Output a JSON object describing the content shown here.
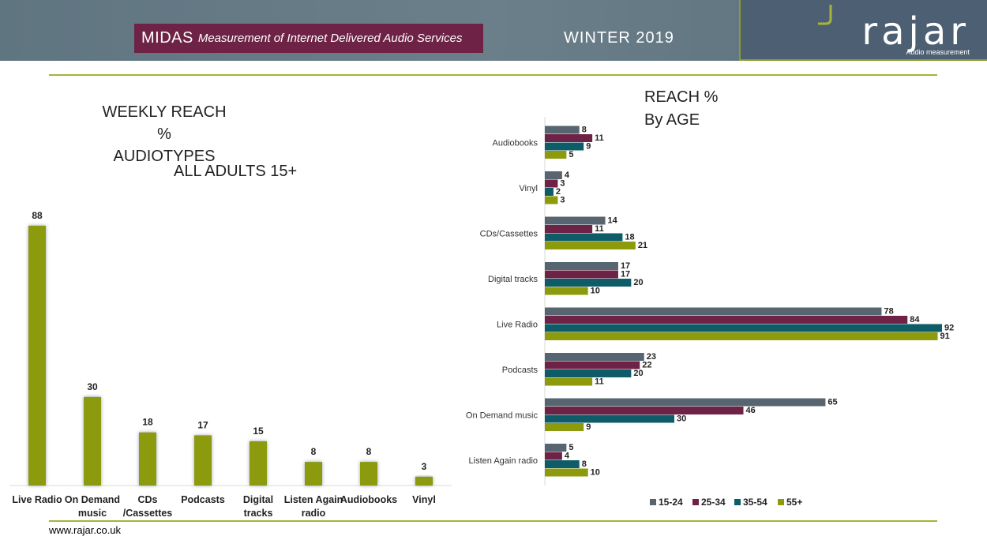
{
  "header": {
    "midas_title": "MIDAS",
    "midas_subtitle": "Measurement of Internet Delivered Audio Services",
    "season": "WINTER 2019",
    "logo_text": "rajar",
    "logo_subtitle": "Audio measurement"
  },
  "left_chart_title": {
    "line1": "WEEKLY REACH %",
    "line2": "AUDIOTYPES",
    "subtitle": "ALL ADULTS 15+"
  },
  "right_chart_title": {
    "line1": "REACH %",
    "line2": "By AGE"
  },
  "footer": {
    "url": "www.rajar.co.uk"
  },
  "colors": {
    "bar_olive": "#8c9a0c",
    "series": [
      "#56656f",
      "#6e2346",
      "#0e5c68",
      "#8c9a0c"
    ],
    "accent_rule": "#a4b43c"
  },
  "chart_data": [
    {
      "type": "bar",
      "title": "WEEKLY REACH % AUDIOTYPES",
      "subtitle": "ALL ADULTS 15+",
      "categories": [
        "Live Radio",
        "On Demand music",
        "CDs /Cassettes",
        "Podcasts",
        "Digital tracks",
        "Listen Again radio",
        "Audiobooks",
        "Vinyl"
      ],
      "category_lines": [
        [
          "Live Radio"
        ],
        [
          "On Demand",
          "music"
        ],
        [
          "CDs",
          "/Cassettes"
        ],
        [
          "Podcasts"
        ],
        [
          "Digital",
          "tracks"
        ],
        [
          "Listen Again",
          "radio"
        ],
        [
          "Audiobooks"
        ],
        [
          "Vinyl"
        ]
      ],
      "values": [
        88,
        30,
        18,
        17,
        15,
        8,
        8,
        3
      ],
      "ylim": [
        0,
        100
      ],
      "data_labels": true,
      "grid": false
    },
    {
      "type": "bar",
      "orientation": "horizontal",
      "title": "REACH % By AGE",
      "categories": [
        "Audiobooks",
        "Vinyl",
        "CDs/Cassettes",
        "Digital tracks",
        "Live Radio",
        "Podcasts",
        "On Demand music",
        "Listen Again radio"
      ],
      "series": [
        {
          "name": "15-24",
          "values": [
            8,
            4,
            14,
            17,
            78,
            23,
            65,
            5
          ]
        },
        {
          "name": "25-34",
          "values": [
            11,
            3,
            11,
            17,
            84,
            22,
            46,
            4
          ]
        },
        {
          "name": "35-54",
          "values": [
            9,
            2,
            18,
            20,
            92,
            20,
            30,
            8
          ]
        },
        {
          "name": "55+",
          "values": [
            5,
            3,
            21,
            10,
            91,
            11,
            9,
            10
          ]
        }
      ],
      "xlim": [
        0,
        92
      ],
      "data_labels": true,
      "legend": "bottom",
      "grid": false
    }
  ]
}
